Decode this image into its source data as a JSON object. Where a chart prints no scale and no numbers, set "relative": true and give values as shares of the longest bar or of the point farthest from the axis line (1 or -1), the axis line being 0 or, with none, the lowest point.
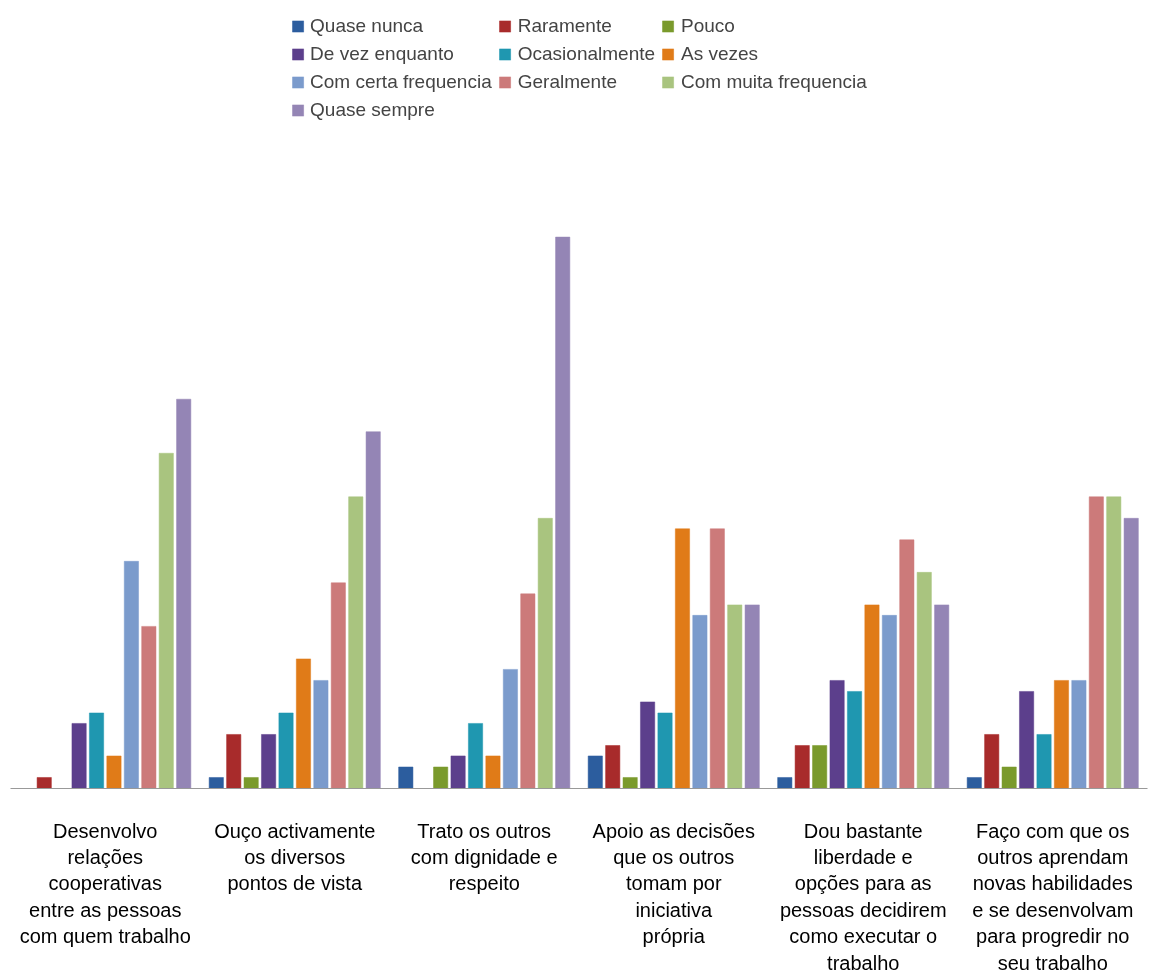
{
  "chart_data": {
    "type": "bar",
    "relative": true,
    "legend": "top",
    "categories": [
      "Desenvolvo relações cooperativas entre as pessoas com quem trabalho",
      "Ouço activamente os diversos pontos de vista",
      "Trato os outros com dignidade e respeito",
      "Apoio as decisões que os outros tomam por iniciativa própria",
      "Dou bastante liberdade e opções para as pessoas decidirem como executar o trabalho",
      "Faço com que os outros aprendam novas habilidades e se desenvolvam para progredir no seu trabalho"
    ],
    "series": [
      {
        "name": "Quase nunca",
        "color": "#2c5d9e",
        "values": [
          0,
          0.02,
          0.039,
          0.059,
          0.02,
          0.02
        ]
      },
      {
        "name": "Raramente",
        "color": "#a82b2b",
        "values": [
          0.02,
          0.098,
          0,
          0.078,
          0.078,
          0.098
        ]
      },
      {
        "name": "Pouco",
        "color": "#7a9a2c",
        "values": [
          0,
          0.02,
          0.039,
          0.02,
          0.078,
          0.039
        ]
      },
      {
        "name": "De vez enquanto",
        "color": "#5c3f8c",
        "values": [
          0.118,
          0.098,
          0.059,
          0.157,
          0.196,
          0.176
        ]
      },
      {
        "name": "Ocasionalmente",
        "color": "#1f97b0",
        "values": [
          0.137,
          0.137,
          0.118,
          0.137,
          0.176,
          0.098
        ]
      },
      {
        "name": "As vezes",
        "color": "#e07b18",
        "values": [
          0.059,
          0.235,
          0.059,
          0.471,
          0.333,
          0.196
        ]
      },
      {
        "name": "Com certa frequencia",
        "color": "#7b9bcc",
        "values": [
          0.412,
          0.196,
          0.216,
          0.314,
          0.314,
          0.196
        ]
      },
      {
        "name": "Geralmente",
        "color": "#cc7a7a",
        "values": [
          0.294,
          0.373,
          0.353,
          0.471,
          0.451,
          0.529
        ]
      },
      {
        "name": "Com muita frequencia",
        "color": "#a9c47f",
        "values": [
          0.608,
          0.529,
          0.49,
          0.333,
          0.392,
          0.529
        ]
      },
      {
        "name": "Quase sempre",
        "color": "#9485b5",
        "values": [
          0.706,
          0.647,
          1,
          0.333,
          0.333,
          0.49
        ]
      }
    ]
  }
}
